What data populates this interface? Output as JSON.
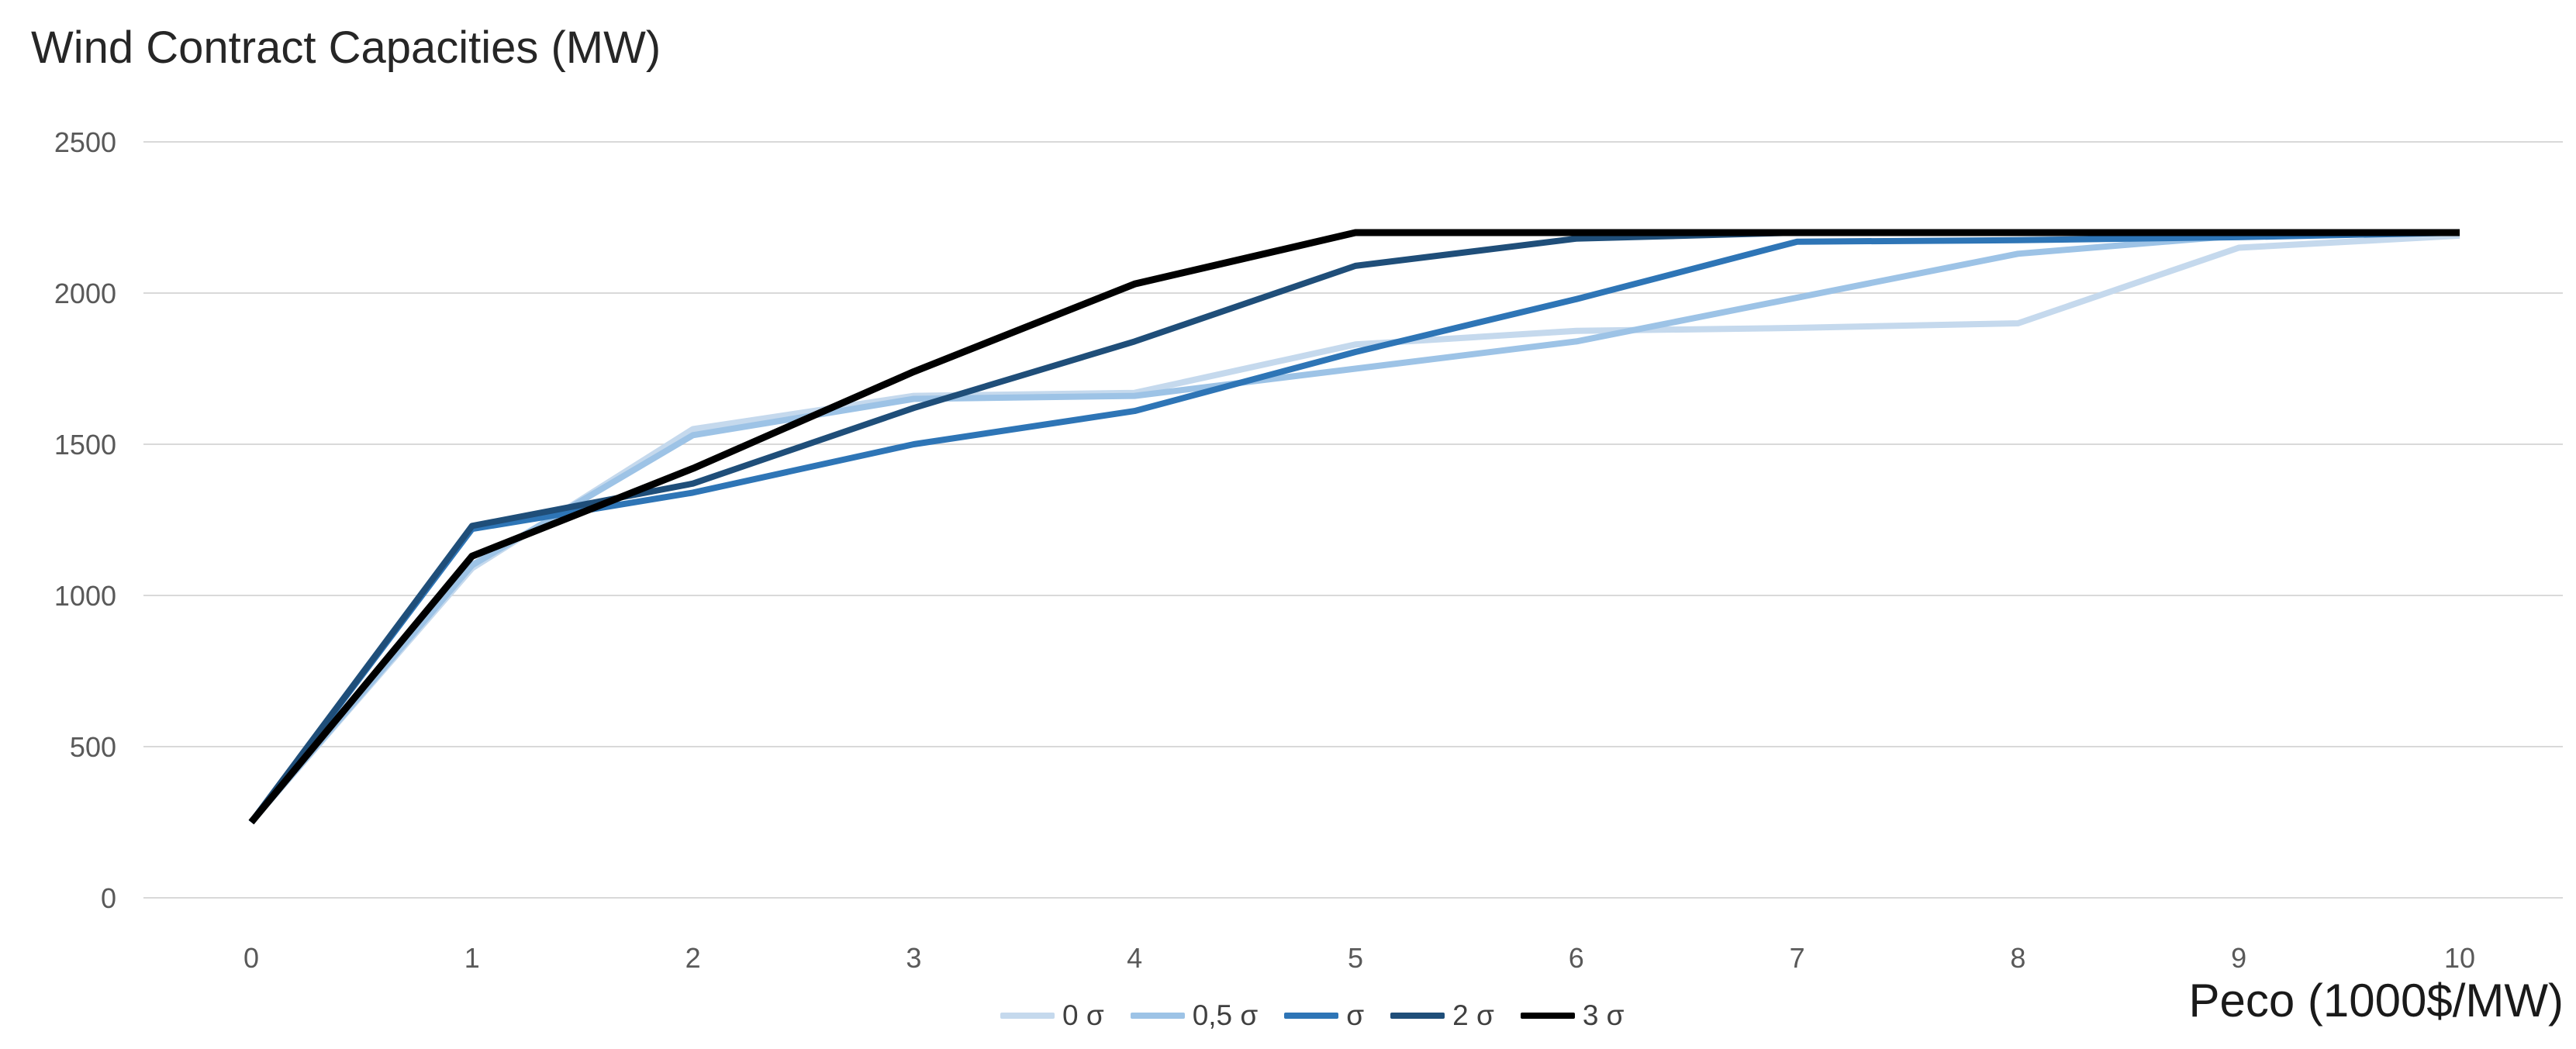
{
  "chart_data": {
    "type": "line",
    "title": "Wind Contract Capacities (MW)",
    "xlabel": "Peco (1000$/MW)",
    "ylabel": "",
    "x": [
      0,
      1,
      2,
      3,
      4,
      5,
      6,
      7,
      8,
      9,
      10
    ],
    "xticks": [
      "0",
      "1",
      "2",
      "3",
      "4",
      "5",
      "6",
      "7",
      "8",
      "9",
      "10"
    ],
    "yticks": [
      0,
      500,
      1000,
      1500,
      2000,
      2500
    ],
    "ylim": [
      0,
      2500
    ],
    "grid": true,
    "legend_position": "bottom-center",
    "gridline_color": "#d9d9d9",
    "axis_text_color": "#595959",
    "series": [
      {
        "name": "0 σ",
        "color": "#C5D9ED",
        "stroke_width": 8,
        "values": [
          250,
          1090,
          1550,
          1660,
          1670,
          1830,
          1875,
          1885,
          1900,
          2150,
          2190
        ]
      },
      {
        "name": "0,5 σ",
        "color": "#9DC3E6",
        "stroke_width": 8,
        "values": [
          250,
          1100,
          1530,
          1650,
          1660,
          1750,
          1840,
          1985,
          2130,
          2190,
          2200
        ]
      },
      {
        "name": "σ",
        "color": "#2E75B6",
        "stroke_width": 8,
        "values": [
          250,
          1220,
          1340,
          1500,
          1610,
          1805,
          1980,
          2170,
          2175,
          2185,
          2200
        ]
      },
      {
        "name": "2 σ",
        "color": "#1F4E79",
        "stroke_width": 8,
        "values": [
          250,
          1230,
          1370,
          1620,
          1840,
          2090,
          2180,
          2200,
          2200,
          2200,
          2200
        ]
      },
      {
        "name": "3 σ",
        "color": "#000000",
        "stroke_width": 9,
        "values": [
          250,
          1130,
          1420,
          1740,
          2030,
          2200,
          2200,
          2200,
          2200,
          2200,
          2200
        ]
      }
    ]
  }
}
